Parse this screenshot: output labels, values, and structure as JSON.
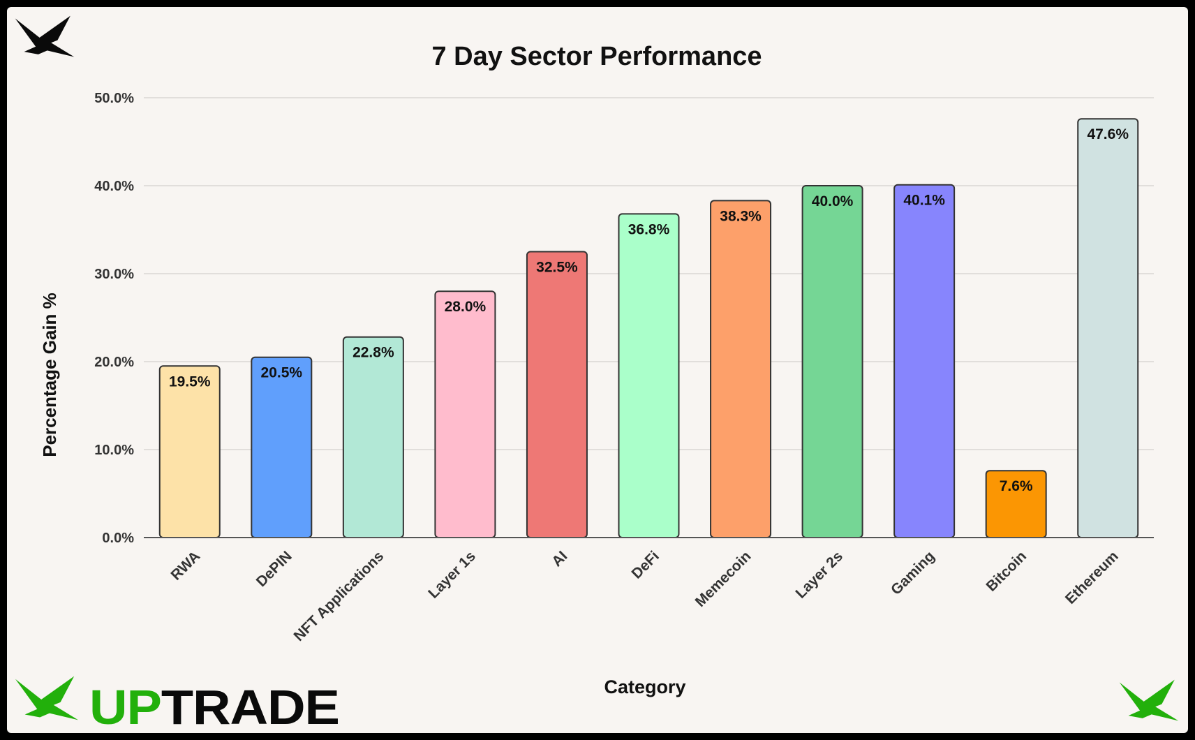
{
  "brand": {
    "name_part1": "UP",
    "name_part2": "TRADE",
    "accent_color": "#22b00b",
    "logo_icon": "bird-icon"
  },
  "chart_data": {
    "type": "bar",
    "title": "7 Day Sector Performance",
    "xlabel": "Category",
    "ylabel": "Percentage Gain %",
    "ylim": [
      0,
      50
    ],
    "yticks": [
      "0.0%",
      "10.0%",
      "20.0%",
      "30.0%",
      "40.0%",
      "50.0%"
    ],
    "grid": true,
    "legend": "none",
    "categories": [
      "RWA",
      "DePIN",
      "NFT Applications",
      "Layer 1s",
      "AI",
      "DeFi",
      "Memecoin",
      "Layer 2s",
      "Gaming",
      "Bitcoin",
      "Ethereum"
    ],
    "values": [
      19.5,
      20.5,
      22.8,
      28.0,
      32.5,
      36.8,
      38.3,
      40.0,
      40.1,
      7.6,
      47.6
    ],
    "data_labels": [
      "19.5%",
      "20.5%",
      "22.8%",
      "28.0%",
      "32.5%",
      "36.8%",
      "38.3%",
      "40.0%",
      "40.1%",
      "7.6%",
      "47.6%"
    ],
    "colors": [
      "#fde2a8",
      "#609ffc",
      "#b2e8d6",
      "#ffbccd",
      "#ee7875",
      "#aaffca",
      "#fda06a",
      "#75d695",
      "#8785fd",
      "#fb9603",
      "#d0e2e1"
    ]
  }
}
